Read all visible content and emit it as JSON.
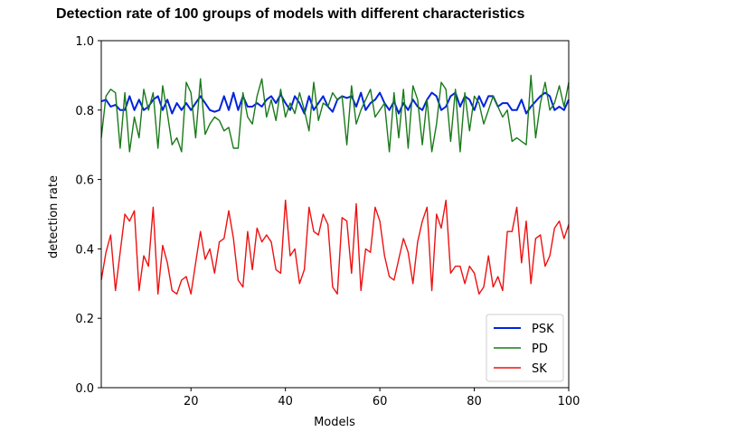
{
  "chart_data": {
    "type": "line",
    "title": "Detection rate of 100 groups of models with different characteristics",
    "xlabel": "Models",
    "ylabel": "detection rate",
    "xlim": [
      1,
      100
    ],
    "ylim": [
      0.0,
      1.0
    ],
    "xticks": [
      "20",
      "40",
      "60",
      "80",
      "100"
    ],
    "xtick_values": [
      20,
      40,
      60,
      80,
      100
    ],
    "yticks": [
      "0.0",
      "0.2",
      "0.4",
      "0.6",
      "0.8",
      "1.0"
    ],
    "ytick_values": [
      0.0,
      0.2,
      0.4,
      0.6,
      0.8,
      1.0
    ],
    "grid": false,
    "legend": "lower-right",
    "series": [
      {
        "name": "PSK",
        "color": "#0022dd",
        "values": [
          0.825,
          0.83,
          0.81,
          0.815,
          0.8,
          0.8,
          0.84,
          0.8,
          0.83,
          0.8,
          0.81,
          0.83,
          0.84,
          0.8,
          0.83,
          0.79,
          0.82,
          0.8,
          0.82,
          0.8,
          0.82,
          0.84,
          0.82,
          0.8,
          0.795,
          0.8,
          0.84,
          0.8,
          0.85,
          0.8,
          0.84,
          0.81,
          0.81,
          0.82,
          0.81,
          0.83,
          0.84,
          0.82,
          0.845,
          0.82,
          0.8,
          0.84,
          0.82,
          0.79,
          0.84,
          0.8,
          0.82,
          0.84,
          0.81,
          0.795,
          0.83,
          0.84,
          0.835,
          0.84,
          0.81,
          0.85,
          0.8,
          0.82,
          0.83,
          0.85,
          0.82,
          0.8,
          0.825,
          0.79,
          0.82,
          0.8,
          0.83,
          0.81,
          0.8,
          0.83,
          0.85,
          0.84,
          0.8,
          0.81,
          0.84,
          0.85,
          0.81,
          0.84,
          0.83,
          0.8,
          0.84,
          0.81,
          0.84,
          0.84,
          0.81,
          0.82,
          0.82,
          0.8,
          0.8,
          0.83,
          0.79,
          0.81,
          0.825,
          0.84,
          0.85,
          0.84,
          0.8,
          0.81,
          0.8,
          0.83
        ]
      },
      {
        "name": "PD",
        "color": "#1a7a1a",
        "values": [
          0.72,
          0.84,
          0.86,
          0.85,
          0.69,
          0.85,
          0.68,
          0.78,
          0.72,
          0.86,
          0.8,
          0.85,
          0.69,
          0.87,
          0.79,
          0.7,
          0.72,
          0.68,
          0.88,
          0.85,
          0.72,
          0.89,
          0.73,
          0.76,
          0.78,
          0.77,
          0.74,
          0.75,
          0.69,
          0.69,
          0.85,
          0.78,
          0.76,
          0.84,
          0.89,
          0.78,
          0.83,
          0.77,
          0.86,
          0.78,
          0.82,
          0.79,
          0.85,
          0.8,
          0.74,
          0.88,
          0.77,
          0.82,
          0.81,
          0.85,
          0.83,
          0.84,
          0.7,
          0.87,
          0.76,
          0.8,
          0.83,
          0.86,
          0.78,
          0.8,
          0.82,
          0.68,
          0.85,
          0.72,
          0.86,
          0.69,
          0.87,
          0.83,
          0.7,
          0.83,
          0.68,
          0.76,
          0.88,
          0.86,
          0.71,
          0.86,
          0.68,
          0.85,
          0.74,
          0.84,
          0.82,
          0.76,
          0.8,
          0.84,
          0.81,
          0.78,
          0.8,
          0.71,
          0.72,
          0.71,
          0.7,
          0.9,
          0.72,
          0.82,
          0.88,
          0.8,
          0.82,
          0.87,
          0.81,
          0.88
        ]
      },
      {
        "name": "SK",
        "color": "#ee1111",
        "values": [
          0.31,
          0.39,
          0.44,
          0.28,
          0.39,
          0.5,
          0.48,
          0.51,
          0.28,
          0.38,
          0.35,
          0.52,
          0.27,
          0.41,
          0.36,
          0.28,
          0.27,
          0.31,
          0.32,
          0.27,
          0.36,
          0.45,
          0.37,
          0.4,
          0.33,
          0.42,
          0.43,
          0.51,
          0.43,
          0.31,
          0.29,
          0.45,
          0.34,
          0.46,
          0.42,
          0.44,
          0.42,
          0.34,
          0.33,
          0.54,
          0.38,
          0.4,
          0.3,
          0.34,
          0.52,
          0.45,
          0.44,
          0.5,
          0.47,
          0.29,
          0.27,
          0.49,
          0.48,
          0.33,
          0.53,
          0.28,
          0.4,
          0.39,
          0.52,
          0.48,
          0.38,
          0.32,
          0.31,
          0.37,
          0.43,
          0.39,
          0.3,
          0.42,
          0.48,
          0.52,
          0.28,
          0.5,
          0.46,
          0.54,
          0.33,
          0.35,
          0.35,
          0.3,
          0.35,
          0.33,
          0.27,
          0.29,
          0.38,
          0.29,
          0.32,
          0.28,
          0.45,
          0.45,
          0.52,
          0.36,
          0.48,
          0.3,
          0.43,
          0.44,
          0.35,
          0.38,
          0.46,
          0.48,
          0.43,
          0.47
        ]
      }
    ]
  }
}
